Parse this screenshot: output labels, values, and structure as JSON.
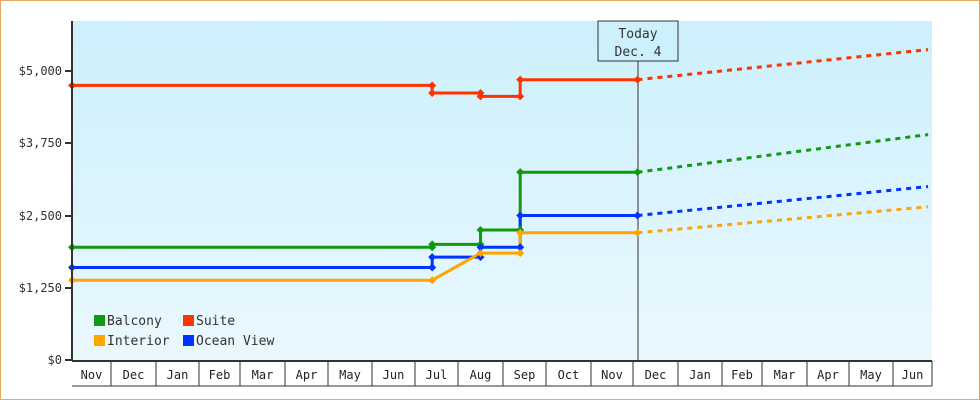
{
  "chart_data": {
    "type": "line",
    "title": "",
    "xlabel": "",
    "ylabel": "",
    "ylim": [
      0,
      5875
    ],
    "y_ticks": [
      {
        "value": 0,
        "label": "$0"
      },
      {
        "value": 1250,
        "label": "$1,250"
      },
      {
        "value": 2500,
        "label": "$2,500"
      },
      {
        "value": 3750,
        "label": "$3,750"
      },
      {
        "value": 5000,
        "label": "$5,000"
      }
    ],
    "x_ticks": [
      "Nov",
      "Dec",
      "Jan",
      "Feb",
      "Mar",
      "Apr",
      "May",
      "Jun",
      "Jul",
      "Aug",
      "Sep",
      "Oct",
      "Nov",
      "Dec",
      "Jan",
      "Feb",
      "Mar",
      "Apr",
      "May",
      "Jun"
    ],
    "today_marker": {
      "line1": "Today",
      "line2": "Dec. 4"
    },
    "grid": false,
    "legend_position": "bottom-left inside",
    "legend": [
      {
        "name": "Balcony",
        "color": "#119911"
      },
      {
        "name": "Suite",
        "color": "#ff3300"
      },
      {
        "name": "Interior",
        "color": "#ffa500"
      },
      {
        "name": "Ocean View",
        "color": "#0033ff"
      }
    ],
    "series": [
      {
        "name": "Suite",
        "color": "#ff3300",
        "history": [
          [
            0,
            4750
          ],
          [
            8.4,
            4750
          ],
          [
            8.4,
            4620
          ],
          [
            9.5,
            4620
          ],
          [
            9.5,
            4560
          ],
          [
            10.4,
            4560
          ],
          [
            10.4,
            4850
          ],
          [
            13.1,
            4850
          ]
        ],
        "forecast": [
          [
            13.1,
            4850
          ],
          [
            19.9,
            5370
          ]
        ]
      },
      {
        "name": "Balcony",
        "color": "#119911",
        "history": [
          [
            0,
            1950
          ],
          [
            8.4,
            1950
          ],
          [
            8.4,
            2000
          ],
          [
            9.5,
            2000
          ],
          [
            9.5,
            2250
          ],
          [
            10.4,
            2250
          ],
          [
            10.4,
            3250
          ],
          [
            13.1,
            3250
          ]
        ],
        "forecast": [
          [
            13.1,
            3250
          ],
          [
            19.9,
            3900
          ]
        ]
      },
      {
        "name": "Ocean View",
        "color": "#0033ff",
        "history": [
          [
            0,
            1600
          ],
          [
            8.4,
            1600
          ],
          [
            8.4,
            1780
          ],
          [
            9.5,
            1780
          ],
          [
            9.5,
            1950
          ],
          [
            10.4,
            1950
          ],
          [
            10.4,
            2500
          ],
          [
            13.1,
            2500
          ]
        ],
        "forecast": [
          [
            13.1,
            2500
          ],
          [
            19.9,
            3000
          ]
        ]
      },
      {
        "name": "Interior",
        "color": "#ffa500",
        "history": [
          [
            0,
            1380
          ],
          [
            8.4,
            1380
          ],
          [
            9.5,
            1850
          ],
          [
            10.4,
            1850
          ],
          [
            10.4,
            2200
          ],
          [
            13.1,
            2200
          ]
        ],
        "forecast": [
          [
            13.1,
            2200
          ],
          [
            19.9,
            2650
          ]
        ]
      }
    ]
  }
}
